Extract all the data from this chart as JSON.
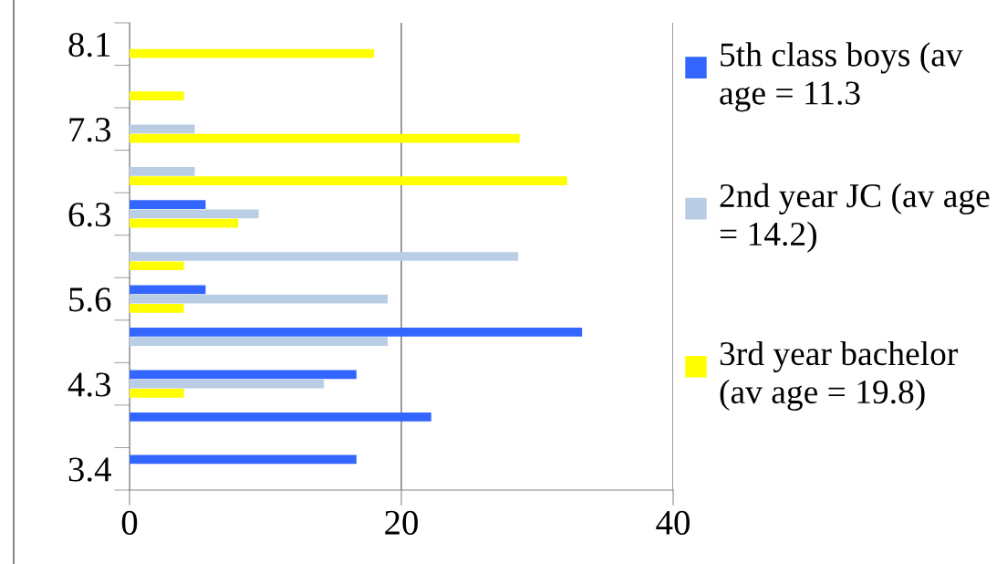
{
  "chart_data": {
    "type": "bar",
    "orientation": "horizontal",
    "categories": [
      "8.1",
      null,
      "7.3",
      null,
      "6.3",
      null,
      "5.6",
      null,
      "4.3",
      null,
      "3.4"
    ],
    "series": [
      {
        "name": "5th class boys (av age = 11.3",
        "color": "#3366ff",
        "values": [
          null,
          null,
          null,
          null,
          5.6,
          null,
          5.6,
          33.3,
          16.7,
          22.2,
          16.7
        ]
      },
      {
        "name": "2nd year JC (av age = 14.2)",
        "color": "#b9cde5",
        "values": [
          null,
          null,
          4.8,
          4.8,
          9.5,
          28.6,
          19.0,
          19.0,
          14.3,
          null,
          null
        ]
      },
      {
        "name": "3rd year bachelor (av age = 19.8)",
        "color": "#ffff00",
        "values": [
          18.0,
          4.0,
          28.7,
          32.2,
          8.0,
          4.0,
          4.0,
          null,
          4.0,
          null,
          null
        ]
      }
    ],
    "xlim": [
      0,
      40
    ],
    "xticks": [
      0,
      20,
      40
    ],
    "grid": "x",
    "legend": "right"
  }
}
